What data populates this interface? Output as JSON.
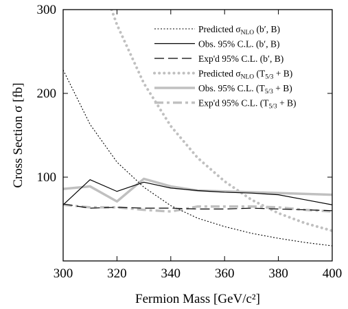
{
  "chart_data": {
    "type": "line",
    "title": "",
    "xlabel": "Fermion Mass [GeV/c²]",
    "ylabel": "Cross Section σ [fb]",
    "xlim": [
      300,
      400
    ],
    "ylim": [
      0,
      300
    ],
    "x_ticks": [
      300,
      320,
      340,
      360,
      380,
      400
    ],
    "y_ticks": [
      100,
      200,
      300
    ],
    "grid": false,
    "legend_position": "top-right",
    "series": [
      {
        "name": "Predicted σNLO (b′, B)",
        "color": "#000000",
        "style": "dotted",
        "x": [
          300,
          310,
          320,
          330,
          340,
          350,
          360,
          370,
          380,
          390,
          400
        ],
        "y": [
          228,
          163,
          118,
          88,
          66,
          51,
          41,
          33,
          27,
          22,
          18
        ]
      },
      {
        "name": "Obs. 95% C.L. (b′, B)",
        "color": "#000000",
        "style": "solid",
        "x": [
          300,
          310,
          320,
          330,
          340,
          350,
          360,
          370,
          380,
          390,
          400
        ],
        "y": [
          67,
          97,
          83,
          94,
          87,
          84,
          82,
          81,
          79,
          73,
          67
        ]
      },
      {
        "name": "Exp'd 95% C.L. (b′, B)",
        "color": "#000000",
        "style": "long-dash",
        "x": [
          300,
          310,
          320,
          330,
          340,
          350,
          360,
          370,
          380,
          390,
          400
        ],
        "y": [
          68,
          63,
          64,
          63,
          63,
          62,
          62,
          63,
          62,
          61,
          60
        ]
      },
      {
        "name": "Predicted σNLO (T5/3 + B)",
        "color": "#c0c0c0",
        "style": "dotted-thick",
        "x": [
          318,
          320,
          330,
          340,
          350,
          360,
          370,
          380,
          390,
          400
        ],
        "y": [
          300,
          282,
          212,
          161,
          123,
          95,
          73,
          57,
          45,
          36
        ]
      },
      {
        "name": "Obs. 95% C.L. (T5/3 + B)",
        "color": "#c0c0c0",
        "style": "solid-thick",
        "x": [
          300,
          310,
          320,
          330,
          340,
          350,
          360,
          370,
          380,
          390,
          400
        ],
        "y": [
          86,
          89,
          71,
          98,
          89,
          84,
          83,
          82,
          81,
          80,
          79
        ]
      },
      {
        "name": "Exp'd 95% C.L. (T5/3 + B)",
        "color": "#c0c0c0",
        "style": "dash-dot-thick",
        "x": [
          300,
          310,
          320,
          330,
          340,
          350,
          360,
          370,
          380,
          390,
          400
        ],
        "y": [
          67,
          64,
          64,
          61,
          59,
          65,
          65,
          65,
          64,
          61,
          59
        ]
      }
    ]
  },
  "legend": {
    "entries": [
      {
        "prefix": "Predicted σ",
        "sub": "NLO",
        "suffix": " (b′, B)"
      },
      {
        "prefix": "Obs. 95% C.L. (b′, B)",
        "sub": "",
        "suffix": ""
      },
      {
        "prefix": "Exp'd 95% C.L. (b′, B)",
        "sub": "",
        "suffix": ""
      },
      {
        "prefix": "Predicted σ",
        "sub": "NLO",
        "suffix": " (T",
        "sub2": "5/3",
        "suffix2": " + B)"
      },
      {
        "prefix": "Obs. 95% C.L. (T",
        "sub": "5/3",
        "suffix": " + B)"
      },
      {
        "prefix": "Exp'd 95% C.L. (T",
        "sub": "5/3",
        "suffix": " + B)"
      }
    ]
  }
}
